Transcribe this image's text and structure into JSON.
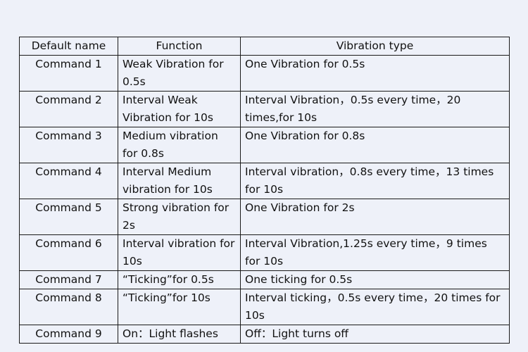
{
  "table": {
    "headers": [
      "Default name",
      "Function",
      "Vibration type"
    ],
    "rows": [
      {
        "name": "Command 1",
        "function": "Weak Vibration for 0.5s",
        "type": "One Vibration for 0.5s"
      },
      {
        "name": "Command 2",
        "function": "Interval Weak Vibration for 10s",
        "type": "Interval Vibration，0.5s every time，20 times,for 10s"
      },
      {
        "name": "Command 3",
        "function": "Medium vibration for 0.8s",
        "type": "One Vibration for 0.8s"
      },
      {
        "name": "Command 4",
        "function": "Interval Medium vibration for 10s",
        "type": "Interval vibration，0.8s every time，13 times for 10s"
      },
      {
        "name": "Command 5",
        "function": "Strong vibration for 2s",
        "type": "One Vibration for 2s"
      },
      {
        "name": "Command 6",
        "function": "Interval vibration for 10s",
        "type": "Interval Vibration,1.25s every time，9 times for 10s"
      },
      {
        "name": "Command 7",
        "function": "“Ticking”for 0.5s",
        "type": "One ticking for 0.5s"
      },
      {
        "name": "Command 8",
        "function": "“Ticking”for 10s",
        "type": "Interval ticking，0.5s every time，20 times for 10s"
      },
      {
        "name": "Command 9",
        "function": "On：Light flashes",
        "type": "Off：Light turns off"
      }
    ]
  }
}
